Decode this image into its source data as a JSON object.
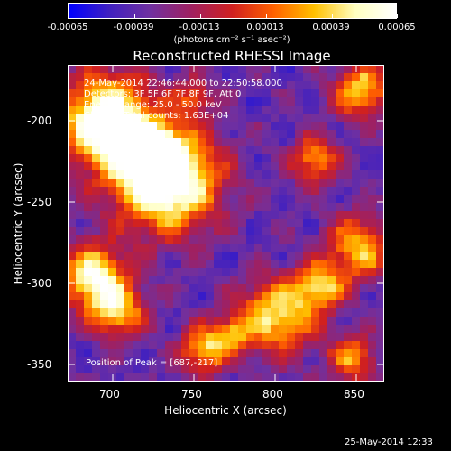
{
  "colorbar": {
    "tick_labels": [
      "-0.00065",
      "-0.00039",
      "-0.00013",
      "0.00013",
      "0.00039",
      "0.00065"
    ],
    "units": "(photons cm⁻² s⁻¹ asec⁻²)"
  },
  "title": "Reconstructed RHESSI Image",
  "info": {
    "line1": "24-May-2014 22:46:44.000 to 22:50:58.000",
    "line2": "Detectors: 3F 5F 6F 7F 8F 9F, Att 0",
    "line3": "Energy Range: 25.0 - 50.0 keV",
    "line4": "Clean     Total counts: 1.63E+04"
  },
  "peak_text": "Position of Peak = [687,-217]",
  "axes": {
    "xlabel": "Heliocentric X (arcsec)",
    "ylabel": "Heliocentric Y (arcsec)",
    "xticks": [
      "700",
      "750",
      "800",
      "850"
    ],
    "yticks": [
      "-200",
      "-250",
      "-300",
      "-350"
    ]
  },
  "footer": "25-May-2014 12:33",
  "colors": {
    "background": "#000000",
    "axis": "#ffffff",
    "colormap": [
      "#0000ff",
      "#4020c0",
      "#7030a0",
      "#a02060",
      "#d02020",
      "#ff6000",
      "#ffc000",
      "#ffffc0",
      "#ffffff"
    ]
  }
}
